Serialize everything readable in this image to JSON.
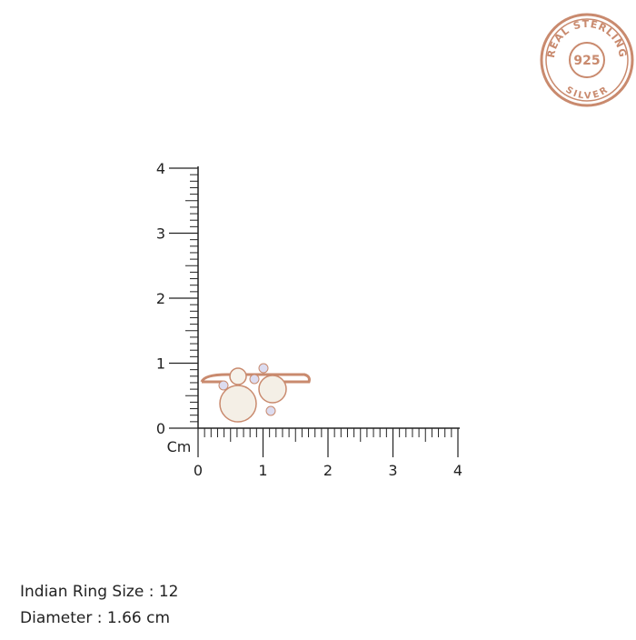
{
  "badge": {
    "top_text": "REAL STERLING",
    "center_text": "925",
    "bottom_text": "SILVER"
  },
  "ruler": {
    "unit": "Cm",
    "yticks": [
      0,
      1,
      2,
      3,
      4
    ],
    "xticks": [
      0,
      1,
      2,
      3,
      4
    ]
  },
  "specs": [
    "Indian Ring Size : 12",
    "Diameter  : 1.66 cm"
  ]
}
